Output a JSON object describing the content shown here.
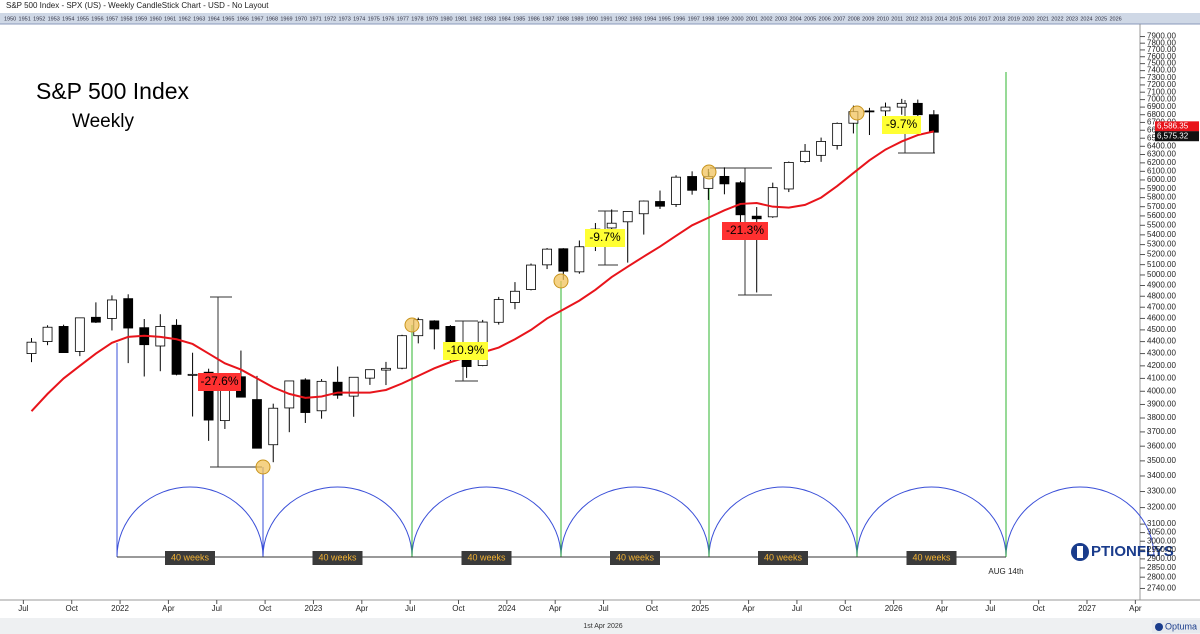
{
  "header": {
    "title": "S&P 500 Index - SPX (US) - Weekly CandleStick Chart - USD - No Layout",
    "years": [
      1950,
      1951,
      1952,
      1953,
      1954,
      1955,
      1956,
      1957,
      1958,
      1959,
      1960,
      1961,
      1962,
      1963,
      1964,
      1965,
      1966,
      1967,
      1968,
      1969,
      1970,
      1971,
      1972,
      1973,
      1974,
      1975,
      1976,
      1977,
      1978,
      1979,
      1980,
      1981,
      1982,
      1983,
      1984,
      1985,
      1986,
      1987,
      1988,
      1989,
      1990,
      1991,
      1992,
      1993,
      1994,
      1995,
      1996,
      1997,
      1998,
      1999,
      2000,
      2001,
      2002,
      2003,
      2004,
      2005,
      2006,
      2007,
      2008,
      2009,
      2010,
      2011,
      2012,
      2013,
      2014,
      2015,
      2016,
      2017,
      2018,
      2019,
      2020,
      2021,
      2022,
      2023,
      2024,
      2025,
      2026
    ]
  },
  "chart_data": {
    "type": "candlestick",
    "title": "S&P 500 Index",
    "subtitle": "Weekly",
    "log_scale": true,
    "x": [
      2021.542,
      2021.625,
      2021.708,
      2021.792,
      2021.875,
      2021.958,
      2022.042,
      2022.125,
      2022.208,
      2022.292,
      2022.375,
      2022.458,
      2022.542,
      2022.625,
      2022.708,
      2022.792,
      2022.875,
      2022.958,
      2023.042,
      2023.125,
      2023.208,
      2023.292,
      2023.375,
      2023.458,
      2023.542,
      2023.625,
      2023.708,
      2023.792,
      2023.875,
      2023.958,
      2024.042,
      2024.125,
      2024.208,
      2024.292,
      2024.375,
      2024.458,
      2024.542,
      2024.625,
      2024.708,
      2024.792,
      2024.875,
      2024.958,
      2025.042,
      2025.125,
      2025.208,
      2025.292,
      2025.375,
      2025.458,
      2025.542,
      2025.625,
      2025.708,
      2025.792,
      2025.875,
      2025.958,
      2026.042,
      2026.125,
      2026.208
    ],
    "open": [
      4300,
      4400,
      4530,
      4318,
      4610,
      4600,
      4778,
      4519,
      4363,
      4540,
      4130,
      4149,
      3781,
      4113,
      3937,
      3610,
      3874,
      4088,
      3853,
      4070,
      3963,
      4102,
      4166,
      4181,
      4450,
      4578,
      4530,
      4284,
      4202,
      4566,
      4743,
      4862,
      5098,
      5258,
      5030,
      5283,
      5472,
      5537,
      5623,
      5757,
      5724,
      6040,
      5904,
      6041,
      5968,
      5597,
      5590,
      5897,
      6215,
      6290,
      6410,
      6690,
      6850,
      6850,
      6900,
      6950,
      6800
    ],
    "high": [
      4430,
      4540,
      4545,
      4608,
      4744,
      4808,
      4818,
      4595,
      4637,
      4593,
      4307,
      4177,
      4140,
      4325,
      4120,
      3906,
      4080,
      4101,
      4095,
      4195,
      4110,
      4170,
      4232,
      4458,
      4607,
      4584,
      4541,
      4394,
      4587,
      4794,
      4932,
      5111,
      5265,
      5264,
      5342,
      5524,
      5670,
      5651,
      5768,
      5879,
      6054,
      6100,
      6128,
      6147,
      5987,
      5696,
      5969,
      6216,
      6428,
      6508,
      6700,
      6920,
      6890,
      6960,
      7010,
      7000,
      6860
    ],
    "low": [
      4230,
      4370,
      4305,
      4279,
      4560,
      4495,
      4222,
      4115,
      4157,
      4124,
      3811,
      3637,
      3721,
      3955,
      3585,
      3491,
      3698,
      3764,
      3795,
      3943,
      3809,
      4049,
      4048,
      4173,
      4385,
      4335,
      4238,
      4104,
      4197,
      4546,
      4682,
      4854,
      5057,
      4953,
      5012,
      5235,
      5390,
      5120,
      5403,
      5675,
      5697,
      5833,
      5774,
      5837,
      5505,
      4835,
      5579,
      5862,
      6201,
      6212,
      6360,
      6560,
      6540,
      6720,
      6800,
      6750,
      6320
    ],
    "close": [
      4395,
      4523,
      4308,
      4605,
      4567,
      4766,
      4516,
      4374,
      4530,
      4132,
      4132,
      3785,
      4130,
      3955,
      3586,
      3872,
      4080,
      3840,
      4077,
      3970,
      4109,
      4169,
      4180,
      4450,
      4589,
      4508,
      4288,
      4194,
      4568,
      4770,
      4846,
      5096,
      5254,
      5036,
      5278,
      5460,
      5522,
      5648,
      5762,
      5705,
      6032,
      5882,
      6040,
      5955,
      5612,
      5569,
      5912,
      6205,
      6339,
      6460,
      6688,
      6840,
      6849,
      6900,
      6950,
      6800,
      6575.32
    ],
    "up_color": "#ffffff",
    "down_color": "#000000",
    "overlay": {
      "color": "#e8141b",
      "values": [
        3850,
        3980,
        4100,
        4200,
        4300,
        4390,
        4440,
        4450,
        4440,
        4420,
        4380,
        4300,
        4220,
        4170,
        4100,
        4030,
        3980,
        3950,
        3960,
        3990,
        3990,
        3990,
        4010,
        4060,
        4120,
        4180,
        4230,
        4270,
        4310,
        4350,
        4420,
        4500,
        4600,
        4680,
        4760,
        4860,
        4980,
        5080,
        5180,
        5280,
        5390,
        5500,
        5580,
        5660,
        5730,
        5740,
        5700,
        5690,
        5720,
        5800,
        5930,
        6080,
        6230,
        6360,
        6460,
        6540,
        6586.35
      ]
    },
    "xlim": [
      2021.405,
      2027.274
    ],
    "xticks": [
      {
        "value": 2021.5,
        "label": "Jul"
      },
      {
        "value": 2021.75,
        "label": "Oct"
      },
      2022,
      {
        "value": 2022.25,
        "label": "Apr"
      },
      {
        "value": 2022.5,
        "label": "Jul"
      },
      {
        "value": 2022.75,
        "label": "Oct"
      },
      2023,
      {
        "value": 2023.25,
        "label": "Apr"
      },
      {
        "value": 2023.5,
        "label": "Jul"
      },
      {
        "value": 2023.75,
        "label": "Oct"
      },
      2024,
      {
        "value": 2024.25,
        "label": "Apr"
      },
      {
        "value": 2024.5,
        "label": "Jul"
      },
      {
        "value": 2024.75,
        "label": "Oct"
      },
      2025,
      {
        "value": 2025.25,
        "label": "Apr"
      },
      {
        "value": 2025.5,
        "label": "Jul"
      },
      {
        "value": 2025.75,
        "label": "Oct"
      },
      2026,
      {
        "value": 2026.25,
        "label": "Apr"
      },
      {
        "value": 2026.5,
        "label": "Jul"
      },
      {
        "value": 2026.75,
        "label": "Oct"
      },
      2027,
      {
        "value": 2027.25,
        "label": "Apr"
      }
    ],
    "ylim": [
      2680,
      8000
    ],
    "yticks": [
      {
        "value": 2740,
        "label": "2740.00"
      },
      {
        "value": 2800,
        "label": "2800.00"
      },
      {
        "value": 2850,
        "label": "2850.00"
      },
      {
        "value": 2900,
        "label": "2900.00"
      },
      {
        "value": 2950,
        "label": "2950.00"
      },
      {
        "value": 3000,
        "label": "3000.00"
      },
      {
        "value": 3050,
        "label": "3050.00"
      },
      {
        "value": 3100,
        "label": "3100.00"
      },
      {
        "value": 3200,
        "label": "3200.00"
      },
      {
        "value": 3300,
        "label": "3300.00"
      },
      {
        "value": 3400,
        "label": "3400.00"
      },
      {
        "value": 3500,
        "label": "3500.00"
      },
      {
        "value": 3600,
        "label": "3600.00"
      },
      {
        "value": 3700,
        "label": "3700.00"
      },
      {
        "value": 3800,
        "label": "3800.00"
      },
      {
        "value": 3900,
        "label": "3900.00"
      },
      {
        "value": 4000,
        "label": "4000.00"
      },
      {
        "value": 4100,
        "label": "4100.00"
      },
      {
        "value": 4200,
        "label": "4200.00"
      },
      {
        "value": 4300,
        "label": "4300.00"
      },
      {
        "value": 4400,
        "label": "4400.00"
      },
      {
        "value": 4500,
        "label": "4500.00"
      },
      {
        "value": 4600,
        "label": "4600.00"
      },
      {
        "value": 4700,
        "label": "4700.00"
      },
      {
        "value": 4800,
        "label": "4800.00"
      },
      {
        "value": 4900,
        "label": "4900.00"
      },
      {
        "value": 5000,
        "label": "5000.00"
      },
      {
        "value": 5100,
        "label": "5100.00"
      },
      {
        "value": 5200,
        "label": "5200.00"
      },
      {
        "value": 5300,
        "label": "5300.00"
      },
      {
        "value": 5400,
        "label": "5400.00"
      },
      {
        "value": 5500,
        "label": "5500.00"
      },
      {
        "value": 5600,
        "label": "5600.00"
      },
      {
        "value": 5700,
        "label": "5700.00"
      },
      {
        "value": 5800,
        "label": "5800.00"
      },
      {
        "value": 5900,
        "label": "5900.00"
      },
      {
        "value": 6000,
        "label": "6000.00"
      },
      {
        "value": 6100,
        "label": "6100.00"
      },
      {
        "value": 6200,
        "label": "6200.00"
      },
      {
        "value": 6300,
        "label": "6300.00"
      },
      {
        "value": 6400,
        "label": "6400.00"
      },
      {
        "value": 6500,
        "label": "6500.00"
      },
      {
        "value": 6600,
        "label": "6600.00"
      },
      {
        "value": 6700,
        "label": "6700.00"
      },
      {
        "value": 6800,
        "label": "6800.00"
      },
      {
        "value": 6900,
        "label": "6900.00"
      },
      {
        "value": 7000,
        "label": "7000.00"
      },
      {
        "value": 7100,
        "label": "7100.00"
      },
      {
        "value": 7200,
        "label": "7200.00"
      },
      {
        "value": 7300,
        "label": "7300.00"
      },
      {
        "value": 7400,
        "label": "7400.00"
      },
      {
        "value": 7500,
        "label": "7500.00"
      },
      {
        "value": 7600,
        "label": "7600.00"
      },
      {
        "value": 7700,
        "label": "7700.00"
      },
      {
        "value": 7800,
        "label": "7800.00"
      },
      {
        "value": 7900,
        "label": "7900.00"
      }
    ],
    "price_tags": [
      {
        "value": 6586.35,
        "label": "6,586.35",
        "color": "#e8141b"
      },
      {
        "value": 6575.32,
        "label": "6,575.32",
        "color": "#111111"
      }
    ],
    "annotations": [
      {
        "text": "-27.6%",
        "color": "#ff3030"
      },
      {
        "text": "-10.9%",
        "color": "#ffff33"
      },
      {
        "text": "-9.7%",
        "color": "#ffff33"
      },
      {
        "text": "-21.3%",
        "color": "#ff3030"
      },
      {
        "text": "-9.7%",
        "color": "#ffff33"
      }
    ],
    "cycle_labels": [
      "40 weeks",
      "40 weeks",
      "40 weeks",
      "40 weeks",
      "40 weeks",
      "40 weeks"
    ],
    "cycle_end": "AUG 14th",
    "brand": "PTIONFLYS"
  },
  "footer": {
    "date": "1st Apr 2026",
    "logo": "Optuma"
  }
}
